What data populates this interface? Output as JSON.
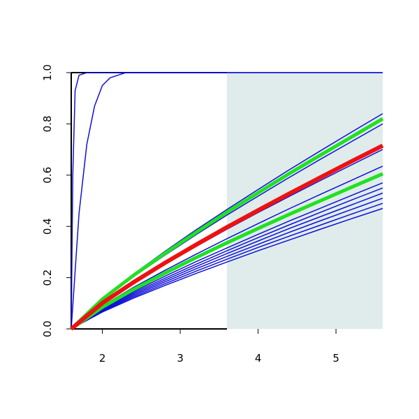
{
  "chart_data": {
    "type": "line",
    "x": [
      1.6,
      2,
      2.4,
      2.8,
      3.2,
      3.6,
      4,
      4.4,
      4.8,
      5.2,
      5.6
    ],
    "xlim": [
      1.6,
      5.6
    ],
    "ylim": [
      0,
      1
    ],
    "xticks": [
      2,
      3,
      4,
      5
    ],
    "yticks": [
      {
        "value": 0,
        "label": "0.0"
      },
      {
        "value": 0.2,
        "label": "0.2"
      },
      {
        "value": 0.4,
        "label": "0.4"
      },
      {
        "value": 0.6,
        "label": "0.6"
      },
      {
        "value": 0.8,
        "label": "0.8"
      },
      {
        "value": 1,
        "label": "1.0"
      }
    ],
    "shade": [
      3.6,
      5.6
    ],
    "shade_color": "#dfeceb",
    "series": [
      {
        "color": "#1010d8",
        "width": 1.5,
        "x": [
          1.6,
          1.62,
          1.65,
          1.7,
          1.8,
          5.6
        ],
        "values": [
          0,
          0.6,
          0.93,
          0.99,
          1,
          1
        ]
      },
      {
        "color": "#1010d8",
        "width": 1.5,
        "x": [
          1.6,
          1.7,
          1.8,
          1.9,
          2.0,
          2.1,
          2.2,
          2.3,
          2.5,
          5.6
        ],
        "values": [
          0,
          0.45,
          0.72,
          0.87,
          0.95,
          0.98,
          0.99,
          1,
          1,
          1
        ]
      },
      {
        "color": "#1010d8",
        "width": 1.5,
        "values": [
          0,
          0.118,
          0.214,
          0.302,
          0.386,
          0.466,
          0.544,
          0.621,
          0.695,
          0.768,
          0.84
        ]
      },
      {
        "color": "#1010d8",
        "width": 1.5,
        "values": [
          0,
          0.113,
          0.204,
          0.287,
          0.367,
          0.444,
          0.518,
          0.591,
          0.662,
          0.731,
          0.8
        ]
      },
      {
        "color": "#1010d8",
        "width": 1.5,
        "values": [
          0,
          0.099,
          0.179,
          0.251,
          0.321,
          0.389,
          0.454,
          0.517,
          0.579,
          0.64,
          0.7
        ]
      },
      {
        "color": "#1010d8",
        "width": 1.5,
        "values": [
          0,
          0.09,
          0.162,
          0.228,
          0.291,
          0.352,
          0.411,
          0.469,
          0.525,
          0.58,
          0.635
        ]
      },
      {
        "color": "#1010d8",
        "width": 1.5,
        "values": [
          0,
          0.08,
          0.145,
          0.205,
          0.262,
          0.316,
          0.369,
          0.421,
          0.471,
          0.521,
          0.57
        ]
      },
      {
        "color": "#1010d8",
        "width": 1.5,
        "values": [
          0,
          0.078,
          0.14,
          0.197,
          0.252,
          0.305,
          0.356,
          0.406,
          0.455,
          0.503,
          0.55
        ]
      },
      {
        "color": "#1010d8",
        "width": 1.5,
        "values": [
          0,
          0.075,
          0.135,
          0.19,
          0.243,
          0.294,
          0.343,
          0.392,
          0.438,
          0.484,
          0.53
        ]
      },
      {
        "color": "#1010d8",
        "width": 1.5,
        "values": [
          0,
          0.072,
          0.13,
          0.183,
          0.234,
          0.283,
          0.33,
          0.377,
          0.422,
          0.466,
          0.51
        ]
      },
      {
        "color": "#1010d8",
        "width": 1.5,
        "values": [
          0,
          0.069,
          0.125,
          0.176,
          0.225,
          0.272,
          0.318,
          0.362,
          0.405,
          0.448,
          0.49
        ]
      },
      {
        "color": "#1010d8",
        "width": 1.5,
        "values": [
          0,
          0.066,
          0.12,
          0.169,
          0.216,
          0.261,
          0.305,
          0.347,
          0.389,
          0.43,
          0.47
        ]
      },
      {
        "color": "#22e022",
        "width": 5,
        "values": [
          0,
          0.116,
          0.209,
          0.294,
          0.376,
          0.455,
          0.531,
          0.606,
          0.678,
          0.749,
          0.82
        ]
      },
      {
        "color": "#22e022",
        "width": 5,
        "values": [
          0,
          0.085,
          0.154,
          0.217,
          0.278,
          0.336,
          0.392,
          0.447,
          0.5,
          0.553,
          0.605
        ]
      },
      {
        "color": "#ee1111",
        "width": 6,
        "values": [
          0,
          0.101,
          0.182,
          0.257,
          0.328,
          0.397,
          0.463,
          0.528,
          0.591,
          0.654,
          0.715
        ]
      }
    ]
  }
}
